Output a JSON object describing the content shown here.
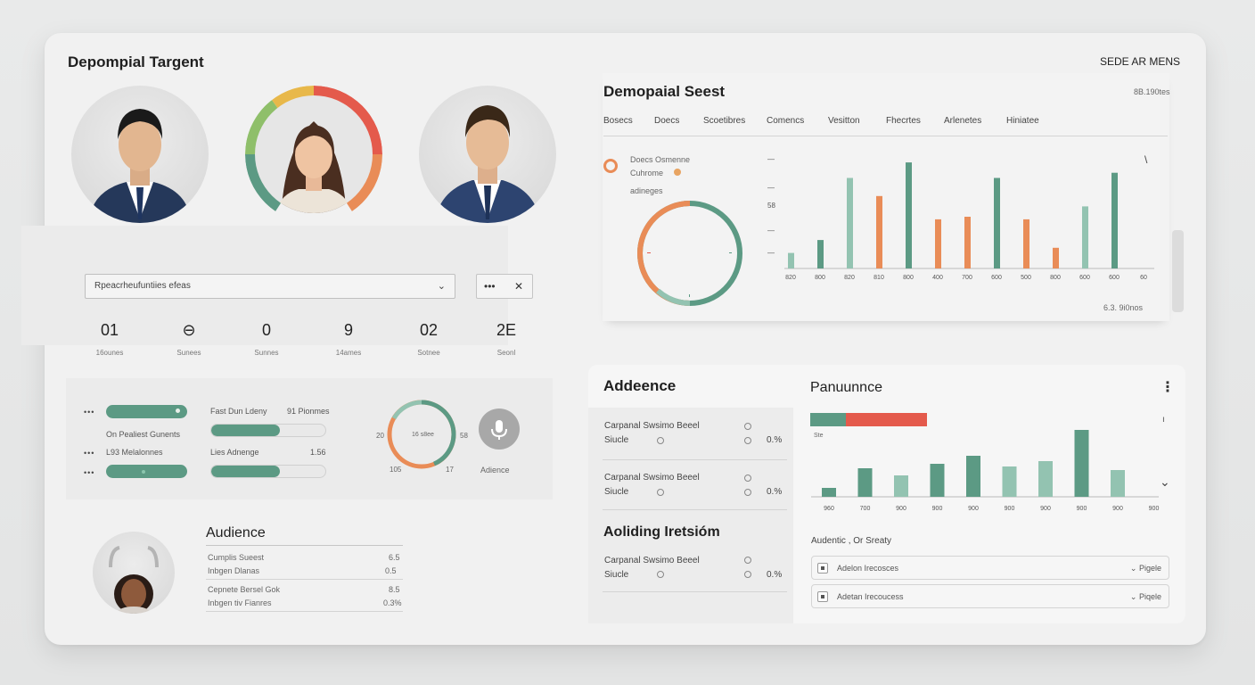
{
  "header": {
    "title": "Depompial Targent",
    "menu": "SEDE AR MENS"
  },
  "selector": {
    "value": "Rpeacrheufuntiies efeas",
    "more_label": "•••",
    "close_label": "✕"
  },
  "stats": [
    {
      "num": "01",
      "label": "16ounes"
    },
    {
      "num": "⊖",
      "label": "Sunees"
    },
    {
      "num": "0",
      "label": "Sunnes"
    },
    {
      "num": "9",
      "label": "14ames"
    },
    {
      "num": "02",
      "label": "Sotnee"
    },
    {
      "num": "2E",
      "label": "Seonl"
    }
  ],
  "progress": {
    "bar1": 0.92,
    "label_right1": "Fast Dun Ldeny",
    "value_right1": "91 Pionmes",
    "label_mid": "On Pealiest Gunents",
    "bar2": 0.65,
    "label_left3": "L93 Melalonnes",
    "label_right3": "Lies Adnenge",
    "value_right3": "1.56",
    "bar3": 0.92,
    "bar4": 0.65,
    "dots": "•••"
  },
  "small_ring": {
    "left": "20",
    "inner": "16 s8ee",
    "right": "58",
    "bottom_left": "105",
    "bottom_right": "17",
    "icon_label": "Adience"
  },
  "audience_left": {
    "title": "Audience",
    "rows": [
      {
        "a": "Cumplis Sueest",
        "b": "Inbgen Dlanas",
        "v1": "6.5",
        "v2": "0.5"
      },
      {
        "a": "Cepnete Bersel Gok",
        "b": "Inbgen tiv Fianres",
        "v1": "8.5",
        "v2": "0.3%"
      }
    ]
  },
  "chart_panel": {
    "title": "Demopaial Seest",
    "top_right": "8B.190tes",
    "tabs": [
      "Bosecs",
      "Doecs",
      "Scoetibres",
      "Comencs",
      "Vesitton",
      "Fhecrtes",
      "Arlenetes",
      "Hiniatee"
    ],
    "legend_line1": "Doecs Osmenne",
    "legend_line2": "Cuhrome",
    "legend_line3": "adineges",
    "footer": "6.3.  9i0nos",
    "corner_mark": "\\"
  },
  "chart_data": [
    {
      "type": "bar",
      "categories": [
        "820",
        "800",
        "820",
        "810",
        "800",
        "400",
        "700",
        "600",
        "500",
        "800",
        "600",
        "600",
        "60"
      ],
      "series": [
        {
          "values": [
            30,
            55,
            175,
            140,
            205,
            95,
            100,
            175,
            95,
            40,
            120,
            185,
            0
          ]
        }
      ],
      "ytick_labels": [
        "—",
        "—",
        "58",
        "—",
        "—"
      ],
      "colors": [
        "#93c3b1",
        "#5c9a84",
        "#93c3b1",
        "#e98c57",
        "#5c9a84",
        "#e98c57",
        "#e98c57",
        "#5c9a84",
        "#e98c57",
        "#e98c57",
        "#93c3b1",
        "#5c9a84",
        "#93c3b1"
      ]
    },
    {
      "type": "bar",
      "title": "Panuunnce",
      "categories": [
        "960",
        "700",
        "900",
        "900",
        "900",
        "900",
        "900",
        "900",
        "900",
        "900"
      ],
      "series": [
        {
          "values": [
            10,
            32,
            24,
            37,
            46,
            34,
            40,
            75,
            30,
            0
          ]
        }
      ],
      "colors": [
        "#5c9a84",
        "#5c9a84",
        "#93c3b1",
        "#5c9a84",
        "#5c9a84",
        "#93c3b1",
        "#93c3b1",
        "#5c9a84",
        "#93c3b1",
        "#93c3b1"
      ],
      "ylabel": "",
      "top_bar_label": "Ste"
    }
  ],
  "right_panel": {
    "left_title": "Addeence",
    "left_rows": [
      {
        "a": "Carpanal Swsimo Beeel",
        "b": "Siucle",
        "v": "0.%"
      },
      {
        "a": "Carpanal Swsimo Beeel",
        "b": "Siucle",
        "v": "0.%"
      }
    ],
    "left_title2": "Aoliding Iretsióm",
    "left_row3": {
      "a": "Carpanal Swsimo Beeel",
      "b": "Siucle",
      "v": "0.%"
    },
    "perf_menu": "⋮",
    "right_tick": "ı",
    "chevron": "⌄",
    "sub_title": "Audentic , Or Sreaty",
    "list": [
      {
        "label": "Adelon Irecosces",
        "right": "Pigele"
      },
      {
        "label": "Adetan Irecoucess",
        "right": "Piqele"
      }
    ]
  },
  "colors": {
    "green": "#5c9a84",
    "light_green": "#93c3b1",
    "orange": "#e98c57",
    "red": "#e45a4c",
    "yellow": "#e8b84a"
  }
}
